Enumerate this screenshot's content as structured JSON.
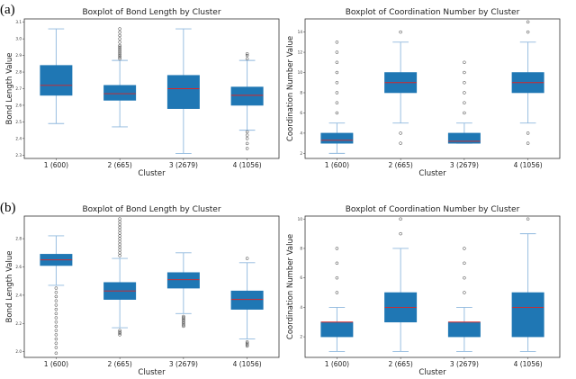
{
  "panel_labels": [
    "(a)",
    "(b)"
  ],
  "colors": {
    "box_fill": "#1f77b4",
    "box_edge": "#1f77b4",
    "whisker": "#8fb8de",
    "median": "#d62728",
    "flier": "#333333"
  },
  "chart_data": [
    {
      "type": "boxplot",
      "panel": "(a)",
      "title": "Boxplot of Bond Length by Cluster",
      "xlabel": "Cluster",
      "ylabel": "Bond Length Value",
      "categories": [
        "1 (600)",
        "2 (665)",
        "3 (2679)",
        "4 (1056)"
      ],
      "ylim": [
        2.28,
        3.12
      ],
      "yticks": [
        "2.3",
        "2.4",
        "2.5",
        "2.6",
        "2.7",
        "2.8",
        "2.9",
        "3.0",
        "3.1"
      ],
      "boxes": [
        {
          "whislo": 2.49,
          "q1": 2.66,
          "med": 2.72,
          "q3": 2.84,
          "whishi": 3.06,
          "fliers": []
        },
        {
          "whislo": 2.47,
          "q1": 2.63,
          "med": 2.67,
          "q3": 2.72,
          "whishi": 2.87,
          "fliers": [
            2.88,
            2.89,
            2.9,
            2.91,
            2.92,
            2.93,
            2.94,
            2.95,
            2.96,
            2.98,
            3.0,
            3.02,
            3.04,
            3.06
          ]
        },
        {
          "whislo": 2.31,
          "q1": 2.58,
          "med": 2.7,
          "q3": 2.78,
          "whishi": 3.06,
          "fliers": []
        },
        {
          "whislo": 2.45,
          "q1": 2.6,
          "med": 2.66,
          "q3": 2.71,
          "whishi": 2.87,
          "fliers": [
            2.44,
            2.42,
            2.4,
            2.37,
            2.34,
            2.88,
            2.9,
            2.91
          ]
        }
      ]
    },
    {
      "type": "boxplot",
      "panel": "(a)",
      "title": "Boxplot of Coordination Number by Cluster",
      "xlabel": "Cluster",
      "ylabel": "Coordination Number Value",
      "categories": [
        "1 (600)",
        "2 (665)",
        "3 (2679)",
        "4 (1056)"
      ],
      "ylim": [
        1.5,
        15.3
      ],
      "yticks": [
        "2",
        "4",
        "6",
        "8",
        "10",
        "12",
        "14"
      ],
      "boxes": [
        {
          "whislo": 2,
          "q1": 3,
          "med": 3.3,
          "q3": 4,
          "whishi": 5,
          "fliers": [
            6,
            7,
            8,
            9,
            10,
            11,
            12,
            13
          ]
        },
        {
          "whislo": 5,
          "q1": 8,
          "med": 9,
          "q3": 10,
          "whishi": 13,
          "fliers": [
            3,
            4,
            14
          ]
        },
        {
          "whislo": 3,
          "q1": 3,
          "med": 3.2,
          "q3": 4,
          "whishi": 5,
          "fliers": [
            6,
            7,
            8,
            9,
            10,
            11
          ]
        },
        {
          "whislo": 5,
          "q1": 8,
          "med": 9,
          "q3": 10,
          "whishi": 13,
          "fliers": [
            3,
            4,
            14,
            15
          ]
        }
      ]
    },
    {
      "type": "boxplot",
      "panel": "(b)",
      "title": "Boxplot of Bond Length by Cluster",
      "xlabel": "Cluster",
      "ylabel": "Bond Length Value",
      "categories": [
        "1 (600)",
        "2 (665)",
        "3 (2679)",
        "4 (1056)"
      ],
      "ylim": [
        1.96,
        2.96
      ],
      "yticks": [
        "2.0",
        "2.2",
        "2.4",
        "2.6",
        "2.8"
      ],
      "boxes": [
        {
          "whislo": 2.47,
          "q1": 2.61,
          "med": 2.65,
          "q3": 2.69,
          "whishi": 2.82,
          "fliers": [
            2.45,
            2.42,
            2.39,
            2.36,
            2.33,
            2.3,
            2.27,
            2.24,
            2.21,
            2.18,
            2.15,
            2.12,
            2.09,
            2.06,
            2.03,
            1.99
          ]
        },
        {
          "whislo": 2.17,
          "q1": 2.37,
          "med": 2.43,
          "q3": 2.49,
          "whishi": 2.66,
          "fliers": [
            2.15,
            2.14,
            2.13,
            2.12,
            2.68,
            2.7,
            2.72,
            2.74,
            2.76,
            2.78,
            2.8,
            2.82,
            2.84,
            2.86,
            2.88,
            2.9,
            2.92,
            2.94
          ]
        },
        {
          "whislo": 2.27,
          "q1": 2.45,
          "med": 2.51,
          "q3": 2.56,
          "whishi": 2.7,
          "fliers": [
            2.25,
            2.24,
            2.23,
            2.22,
            2.21,
            2.2,
            2.19,
            2.18
          ]
        },
        {
          "whislo": 2.09,
          "q1": 2.3,
          "med": 2.37,
          "q3": 2.43,
          "whishi": 2.63,
          "fliers": [
            2.07,
            2.06,
            2.05,
            2.04,
            2.66
          ]
        }
      ]
    },
    {
      "type": "boxplot",
      "panel": "(b)",
      "title": "Boxplot of Coordination Number by Cluster",
      "xlabel": "Cluster",
      "ylabel": "Coordination Number Value",
      "categories": [
        "1 (600)",
        "2 (665)",
        "3 (2679)",
        "4 (1056)"
      ],
      "ylim": [
        0.6,
        10.2
      ],
      "yticks": [
        "2",
        "4",
        "6",
        "8",
        "10"
      ],
      "boxes": [
        {
          "whislo": 1,
          "q1": 2,
          "med": 3,
          "q3": 3,
          "whishi": 4,
          "fliers": [
            5,
            6,
            7,
            8
          ]
        },
        {
          "whislo": 1,
          "q1": 3,
          "med": 4,
          "q3": 5,
          "whishi": 8,
          "fliers": [
            9,
            10
          ]
        },
        {
          "whislo": 1,
          "q1": 2,
          "med": 3,
          "q3": 3,
          "whishi": 4,
          "fliers": [
            5,
            6,
            7,
            8
          ]
        },
        {
          "whislo": 1,
          "q1": 2,
          "med": 4,
          "q3": 5,
          "whishi": 9,
          "fliers": [
            10
          ]
        }
      ]
    }
  ]
}
